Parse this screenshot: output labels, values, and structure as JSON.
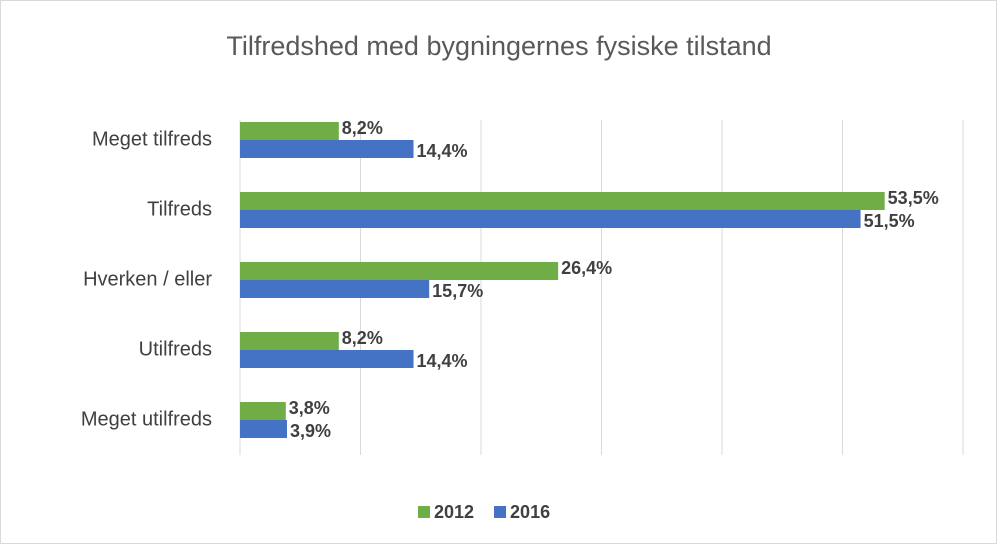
{
  "chart_data": {
    "type": "bar",
    "orientation": "horizontal",
    "title": "Tilfredshed med bygningernes fysiske tilstand",
    "categories": [
      "Meget tilfreds",
      "Tilfreds",
      "Hverken / eller",
      "Utilfreds",
      "Meget utilfreds"
    ],
    "series": [
      {
        "name": "2012",
        "color": "#70ad47",
        "values": [
          8.2,
          53.5,
          26.4,
          8.2,
          3.8
        ],
        "value_labels": [
          "8,2%",
          "53,5%",
          "26,4%",
          "8,2%",
          "3,8%"
        ]
      },
      {
        "name": "2016",
        "color": "#4472c4",
        "values": [
          14.4,
          51.5,
          15.7,
          14.4,
          3.9
        ],
        "value_labels": [
          "14,4%",
          "51,5%",
          "15,7%",
          "14,4%",
          "3,9%"
        ]
      }
    ],
    "xlim": [
      0,
      60
    ],
    "xticks": [
      0,
      10,
      20,
      30,
      40,
      50,
      60
    ],
    "grid": true,
    "legend": "bottom"
  }
}
